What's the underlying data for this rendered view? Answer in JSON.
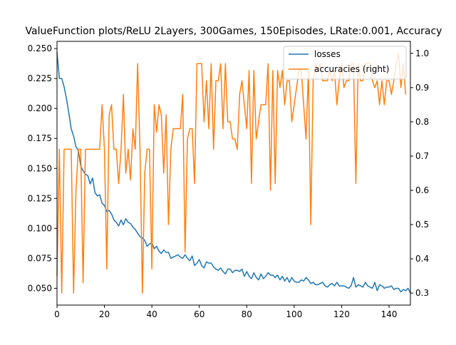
{
  "chart_data": {
    "type": "line",
    "title": "ValueFunction plots/ReLU 2Layers, 300Games, 150Episodes, LRate:0.001, Accuracy",
    "xlabel": "",
    "ylabel_left": "",
    "ylabel_right": "",
    "xlim": [
      0,
      149
    ],
    "ylim_left": [
      0.036,
      0.256
    ],
    "ylim_right": [
      0.265,
      1.035
    ],
    "xticks": [
      0,
      20,
      40,
      60,
      80,
      100,
      120,
      140
    ],
    "yticks_left": [
      0.05,
      0.075,
      0.1,
      0.125,
      0.15,
      0.175,
      0.2,
      0.225,
      0.25
    ],
    "yticks_right": [
      0.3,
      0.4,
      0.5,
      0.6,
      0.7,
      0.8,
      0.9,
      1.0
    ],
    "grid": false,
    "legend_position": "top-right",
    "series": [
      {
        "name": "losses",
        "axis": "left",
        "color": "#1f77b4",
        "values": [
          0.247,
          0.225,
          0.225,
          0.218,
          0.208,
          0.196,
          0.183,
          0.177,
          0.168,
          0.165,
          0.152,
          0.148,
          0.145,
          0.144,
          0.137,
          0.142,
          0.13,
          0.127,
          0.128,
          0.121,
          0.119,
          0.114,
          0.115,
          0.112,
          0.107,
          0.105,
          0.102,
          0.107,
          0.103,
          0.108,
          0.105,
          0.104,
          0.101,
          0.099,
          0.096,
          0.093,
          0.092,
          0.09,
          0.085,
          0.087,
          0.088,
          0.083,
          0.085,
          0.081,
          0.079,
          0.082,
          0.08,
          0.08,
          0.075,
          0.076,
          0.077,
          0.078,
          0.076,
          0.075,
          0.078,
          0.075,
          0.073,
          0.077,
          0.069,
          0.071,
          0.074,
          0.069,
          0.067,
          0.072,
          0.071,
          0.071,
          0.068,
          0.066,
          0.065,
          0.067,
          0.064,
          0.062,
          0.066,
          0.066,
          0.063,
          0.065,
          0.065,
          0.064,
          0.066,
          0.06,
          0.064,
          0.06,
          0.058,
          0.063,
          0.059,
          0.057,
          0.062,
          0.058,
          0.06,
          0.063,
          0.061,
          0.061,
          0.059,
          0.061,
          0.057,
          0.06,
          0.056,
          0.059,
          0.055,
          0.059,
          0.056,
          0.055,
          0.055,
          0.057,
          0.056,
          0.059,
          0.057,
          0.054,
          0.055,
          0.053,
          0.053,
          0.054,
          0.055,
          0.052,
          0.051,
          0.053,
          0.054,
          0.052,
          0.055,
          0.052,
          0.052,
          0.052,
          0.051,
          0.05,
          0.052,
          0.059,
          0.051,
          0.053,
          0.052,
          0.051,
          0.055,
          0.052,
          0.051,
          0.05,
          0.055,
          0.048,
          0.053,
          0.052,
          0.05,
          0.051,
          0.051,
          0.052,
          0.049,
          0.05,
          0.05,
          0.047,
          0.049,
          0.048,
          0.05,
          0.046
        ]
      },
      {
        "name": "accuracies (right)",
        "axis": "right",
        "color": "#ff7f0e",
        "values": [
          0.35,
          0.72,
          0.3,
          0.72,
          0.72,
          0.72,
          0.72,
          0.3,
          0.6,
          0.72,
          0.72,
          0.33,
          0.72,
          0.72,
          0.72,
          0.72,
          0.72,
          0.72,
          0.72,
          0.85,
          0.72,
          0.37,
          0.82,
          0.85,
          0.72,
          0.72,
          0.62,
          0.72,
          0.88,
          0.65,
          0.72,
          0.63,
          0.78,
          0.72,
          0.97,
          0.72,
          0.3,
          0.65,
          0.72,
          0.72,
          0.37,
          0.85,
          0.77,
          0.85,
          0.82,
          0.65,
          0.82,
          0.5,
          0.72,
          0.78,
          0.78,
          0.78,
          0.78,
          0.88,
          0.42,
          0.75,
          0.78,
          0.78,
          0.62,
          0.97,
          0.97,
          0.97,
          0.8,
          0.92,
          0.78,
          0.97,
          0.72,
          0.92,
          0.92,
          0.97,
          0.78,
          0.97,
          0.8,
          0.8,
          0.75,
          0.75,
          0.72,
          0.88,
          0.92,
          0.85,
          0.78,
          0.95,
          0.62,
          0.95,
          0.75,
          0.8,
          0.85,
          0.85,
          0.85,
          0.97,
          0.6,
          0.95,
          0.62,
          0.95,
          0.9,
          0.95,
          0.85,
          0.92,
          0.92,
          0.8,
          0.85,
          0.9,
          0.95,
          0.95,
          0.85,
          0.75,
          0.95,
          0.5,
          0.92,
          0.97,
          0.95,
          0.97,
          0.92,
          0.92,
          0.92,
          0.95,
          0.92,
          0.95,
          0.85,
          0.92,
          0.97,
          0.9,
          0.92,
          0.92,
          0.97,
          0.97,
          0.62,
          0.97,
          0.92,
          0.92,
          0.97,
          0.97,
          0.97,
          0.92,
          0.9,
          0.92,
          0.85,
          0.92,
          0.85,
          0.92,
          0.92,
          0.88,
          0.92,
          0.97,
          1.0,
          0.9,
          0.97,
          0.88
        ]
      }
    ]
  }
}
